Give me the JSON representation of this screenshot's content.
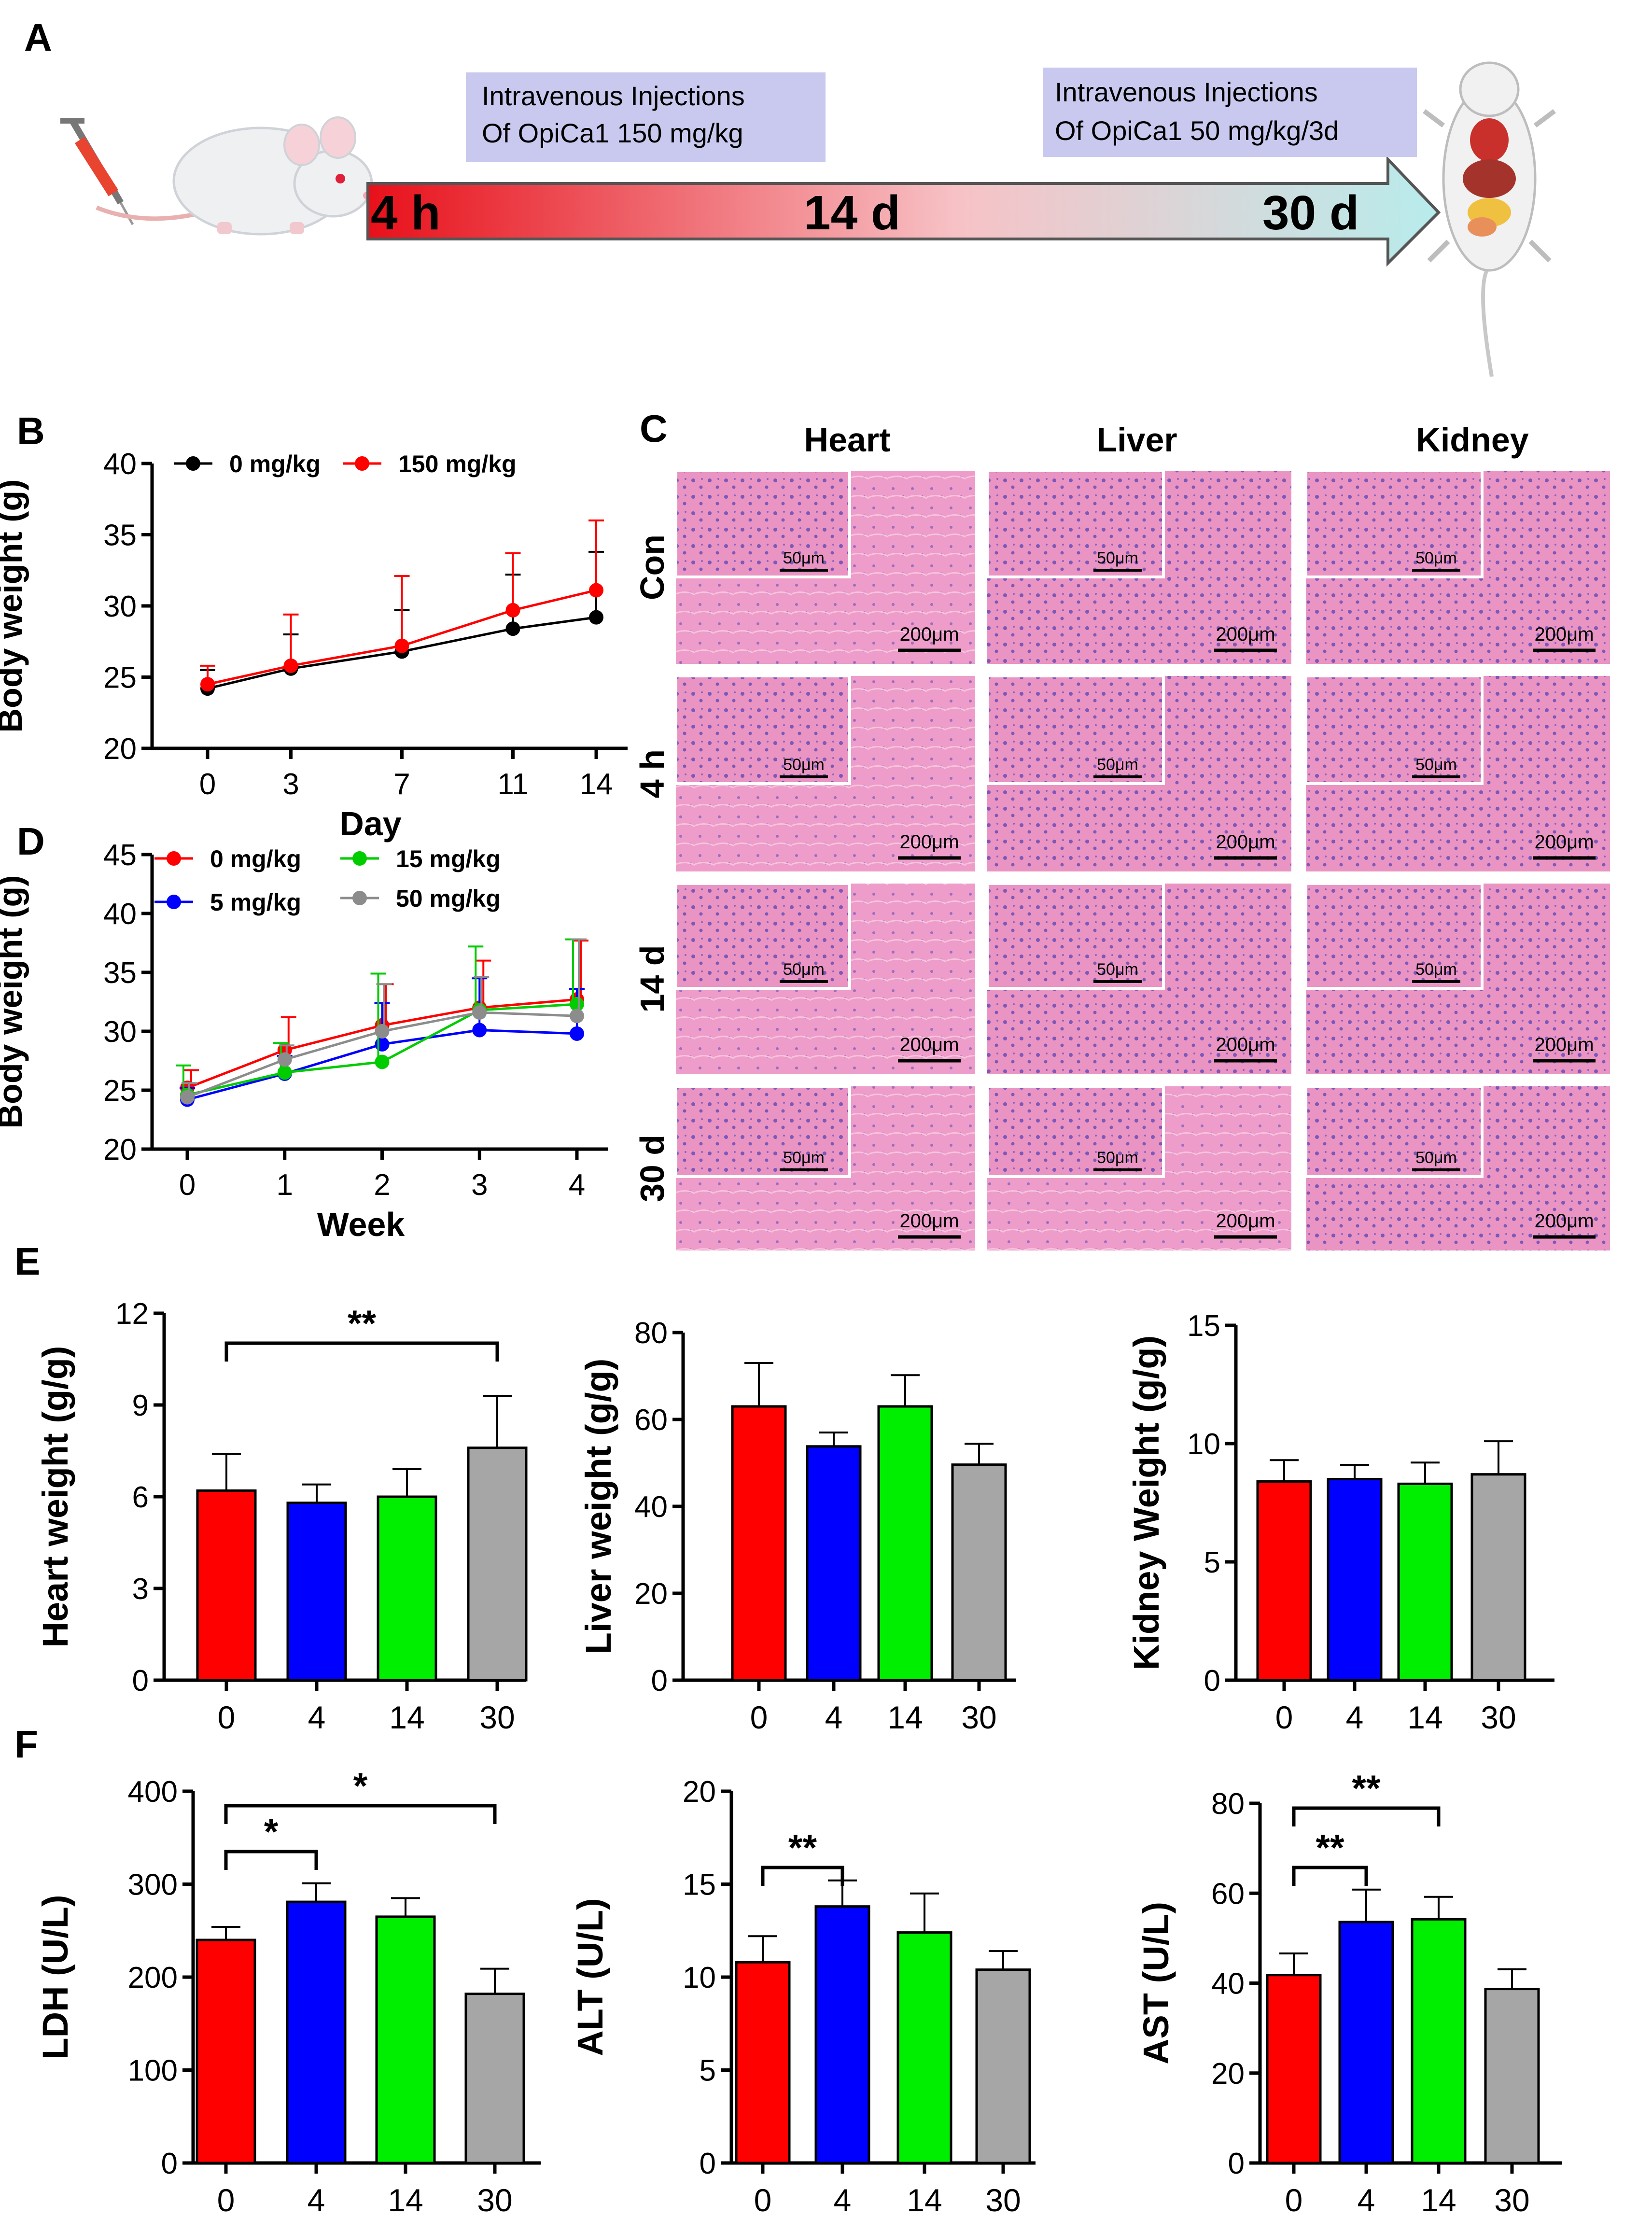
{
  "panel_labels": {
    "A": "A",
    "B": "B",
    "C": "C",
    "D": "D",
    "E": "E",
    "F": "F"
  },
  "colors": {
    "red": "#ff0000",
    "blue": "#0000ff",
    "green": "#00ee00",
    "gray": "#a6a6a6",
    "black": "#000000",
    "box": "#c9c9ef",
    "tissue": "#ee9cc9",
    "tissue_dark": "#e584b9"
  },
  "panel_a": {
    "box1_line1": "Intravenous Injections",
    "box1_line2": "Of OpiCa1 150 mg/kg",
    "box2_line1": "Intravenous Injections",
    "box2_line2": "Of OpiCa1 50 mg/kg/3d",
    "t1": "4 h",
    "t2": "14 d",
    "t3": "30 d"
  },
  "panel_c": {
    "columns": [
      "Heart",
      "Liver",
      "Kidney"
    ],
    "rows": [
      "Con",
      "4 h",
      "14 d",
      "30 d"
    ],
    "scale_small": "50μm",
    "scale_large": "200μm"
  },
  "chart_data": [
    {
      "id": "B",
      "type": "line",
      "title": "",
      "xlabel": "Day",
      "ylabel": "Body weight (g)",
      "x": [
        0,
        3,
        7,
        11,
        14
      ],
      "xticklabels": [
        "0",
        "3",
        "7",
        "11",
        "14"
      ],
      "ylim": [
        20,
        40
      ],
      "yticks": [
        20,
        25,
        30,
        35,
        40
      ],
      "series": [
        {
          "name": "0 mg/kg",
          "color": "#000000",
          "values": [
            24.2,
            25.6,
            26.8,
            28.4,
            29.2
          ],
          "errors": [
            1.3,
            2.4,
            2.9,
            3.8,
            4.6
          ]
        },
        {
          "name": "150 mg/kg",
          "color": "#ff0000",
          "values": [
            24.5,
            25.8,
            27.2,
            29.7,
            31.1
          ],
          "errors": [
            1.3,
            3.6,
            4.9,
            4.0,
            4.9
          ]
        }
      ],
      "legend": "top-left"
    },
    {
      "id": "D",
      "type": "line",
      "title": "",
      "xlabel": "Week",
      "ylabel": "Body weight (g)",
      "x": [
        0,
        1,
        2,
        3,
        4
      ],
      "xticklabels": [
        "0",
        "1",
        "2",
        "3",
        "4"
      ],
      "ylim": [
        20,
        45
      ],
      "yticks": [
        20,
        25,
        30,
        35,
        40,
        45
      ],
      "series": [
        {
          "name": "0 mg/kg",
          "color": "#ff0000",
          "values": [
            25.2,
            28.4,
            30.5,
            32.0,
            32.7
          ],
          "errors": [
            1.5,
            2.8,
            3.5,
            4.0,
            5.0
          ]
        },
        {
          "name": "5 mg/kg",
          "color": "#0000ff",
          "values": [
            24.2,
            26.4,
            28.9,
            30.1,
            29.8
          ],
          "errors": [
            1.0,
            1.5,
            3.5,
            4.4,
            3.8
          ]
        },
        {
          "name": "15 mg/kg",
          "color": "#00cc00",
          "values": [
            24.6,
            26.5,
            27.4,
            31.8,
            32.3
          ],
          "errors": [
            2.5,
            2.5,
            7.5,
            5.4,
            5.5
          ]
        },
        {
          "name": "50 mg/kg",
          "color": "#8c8c8c",
          "values": [
            24.4,
            27.6,
            30.0,
            31.6,
            31.3
          ],
          "errors": [
            1.2,
            1.2,
            4.0,
            3.0,
            6.5
          ]
        }
      ],
      "legend": "top-left"
    },
    {
      "id": "E1",
      "type": "bar",
      "ylabel": "Heart weight (g/g)",
      "categories": [
        "0",
        "4",
        "14",
        "30"
      ],
      "values": [
        6.2,
        5.8,
        6.0,
        7.6
      ],
      "errors": [
        1.2,
        0.6,
        0.9,
        1.7
      ],
      "ylim": [
        0,
        12
      ],
      "yticks": [
        0,
        3,
        6,
        9,
        12
      ],
      "significance": [
        {
          "from": 0,
          "to": 3,
          "label": "**"
        }
      ]
    },
    {
      "id": "E2",
      "type": "bar",
      "ylabel": "Liver weight (g/g)",
      "categories": [
        "0",
        "4",
        "14",
        "30"
      ],
      "values": [
        63.0,
        53.8,
        63.0,
        49.6
      ],
      "errors": [
        10.0,
        3.2,
        7.2,
        4.8
      ],
      "ylim": [
        0,
        80
      ],
      "yticks": [
        0,
        20,
        40,
        60,
        80
      ],
      "significance": []
    },
    {
      "id": "E3",
      "type": "bar",
      "ylabel": "Kidney Weight (g/g)",
      "categories": [
        "0",
        "4",
        "14",
        "30"
      ],
      "values": [
        8.4,
        8.5,
        8.3,
        8.7
      ],
      "errors": [
        0.9,
        0.6,
        0.9,
        1.4
      ],
      "ylim": [
        0,
        15
      ],
      "yticks": [
        0,
        5,
        10,
        15
      ],
      "significance": []
    },
    {
      "id": "F1",
      "type": "bar",
      "ylabel": "LDH (U/L)",
      "categories": [
        "0",
        "4",
        "14",
        "30"
      ],
      "values": [
        240,
        281,
        265,
        182
      ],
      "errors": [
        14,
        20,
        20,
        27
      ],
      "ylim": [
        0,
        400
      ],
      "yticks": [
        0,
        100,
        200,
        300,
        400
      ],
      "significance": [
        {
          "from": 0,
          "to": 1,
          "label": "*"
        },
        {
          "from": 0,
          "to": 3,
          "label": "*"
        }
      ]
    },
    {
      "id": "F2",
      "type": "bar",
      "ylabel": "ALT (U/L)",
      "categories": [
        "0",
        "4",
        "14",
        "30"
      ],
      "values": [
        10.8,
        13.8,
        12.4,
        10.4
      ],
      "errors": [
        1.4,
        1.4,
        2.1,
        1.0
      ],
      "ylim": [
        0,
        20
      ],
      "yticks": [
        0,
        5,
        10,
        15,
        20
      ],
      "significance": [
        {
          "from": 0,
          "to": 1,
          "label": "**"
        }
      ]
    },
    {
      "id": "F3",
      "type": "bar",
      "ylabel": "AST (U/L)",
      "categories": [
        "0",
        "4",
        "14",
        "30"
      ],
      "values": [
        41.8,
        53.6,
        54.2,
        38.7
      ],
      "errors": [
        4.8,
        7.2,
        5.0,
        4.4
      ],
      "ylim": [
        0,
        80
      ],
      "yticks": [
        0,
        20,
        40,
        60,
        80
      ],
      "significance": [
        {
          "from": 0,
          "to": 1,
          "label": "**"
        },
        {
          "from": 0,
          "to": 2,
          "label": "**"
        }
      ]
    }
  ]
}
